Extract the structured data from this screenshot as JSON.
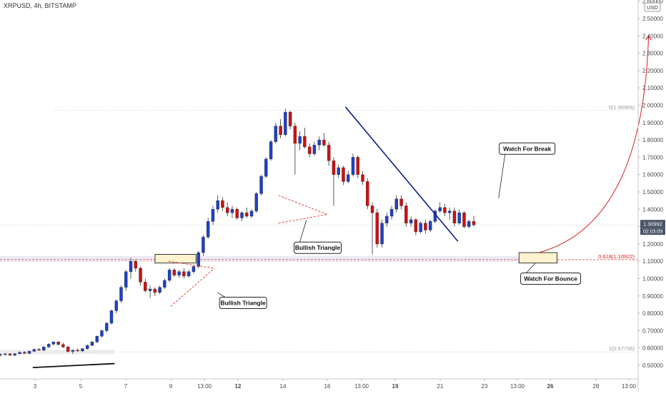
{
  "chart_data": {
    "type": "candlestick",
    "title": "XRPUSD, 4h, BITSTAMP",
    "currency_label": "USD",
    "current_price_label": "1.30992",
    "countdown_label": "02:03:09",
    "ylim": [
      0.44,
      2.64
    ],
    "y_ticks": [
      "0.50000",
      "0.60000",
      "0.70000",
      "0.80000",
      "0.90000",
      "1.00000",
      "1.10000",
      "1.20000",
      "1.30000",
      "1.40000",
      "1.50000",
      "1.60000",
      "1.70000",
      "1.80000",
      "1.90000",
      "2.00000",
      "2.10000",
      "2.20000",
      "2.30000",
      "2.40000",
      "2.50000",
      "2.60000"
    ],
    "x_ticks": [
      "3",
      "5",
      "7",
      "9",
      "13:00",
      "12",
      "14",
      "16",
      "13:00",
      "19",
      "21",
      "23",
      "13:00",
      "26",
      "28",
      "13:00"
    ],
    "fib_levels": [
      {
        "label": "0(1.96965)",
        "value": 1.96965
      },
      {
        "label": "0.618(1.10922)",
        "value": 1.10922
      },
      {
        "label": "1(0.57736)",
        "value": 0.57736
      }
    ],
    "candles": [
      [
        0.56,
        0.568,
        0.552,
        0.563
      ],
      [
        0.563,
        0.572,
        0.556,
        0.566
      ],
      [
        0.566,
        0.57,
        0.555,
        0.558
      ],
      [
        0.558,
        0.57,
        0.552,
        0.567
      ],
      [
        0.567,
        0.58,
        0.562,
        0.575
      ],
      [
        0.575,
        0.582,
        0.566,
        0.569
      ],
      [
        0.569,
        0.585,
        0.565,
        0.581
      ],
      [
        0.581,
        0.596,
        0.575,
        0.592
      ],
      [
        0.592,
        0.6,
        0.584,
        0.587
      ],
      [
        0.587,
        0.612,
        0.582,
        0.606
      ],
      [
        0.606,
        0.627,
        0.6,
        0.622
      ],
      [
        0.622,
        0.64,
        0.615,
        0.635
      ],
      [
        0.635,
        0.64,
        0.615,
        0.62
      ],
      [
        0.62,
        0.63,
        0.6,
        0.606
      ],
      [
        0.606,
        0.612,
        0.575,
        0.58
      ],
      [
        0.58,
        0.592,
        0.565,
        0.587
      ],
      [
        0.587,
        0.598,
        0.578,
        0.583
      ],
      [
        0.583,
        0.6,
        0.576,
        0.596
      ],
      [
        0.596,
        0.62,
        0.59,
        0.615
      ],
      [
        0.615,
        0.64,
        0.61,
        0.635
      ],
      [
        0.635,
        0.672,
        0.628,
        0.668
      ],
      [
        0.668,
        0.705,
        0.66,
        0.7
      ],
      [
        0.7,
        0.75,
        0.69,
        0.743
      ],
      [
        0.743,
        0.822,
        0.735,
        0.815
      ],
      [
        0.815,
        0.88,
        0.8,
        0.872
      ],
      [
        0.872,
        0.96,
        0.86,
        0.95
      ],
      [
        0.95,
        1.05,
        0.93,
        1.04
      ],
      [
        1.04,
        1.12,
        1.0,
        1.1
      ],
      [
        1.1,
        1.11,
        1.04,
        1.06
      ],
      [
        1.06,
        1.07,
        0.96,
        0.98
      ],
      [
        0.98,
        1.0,
        0.92,
        0.93
      ],
      [
        0.93,
        0.96,
        0.89,
        0.94
      ],
      [
        0.94,
        0.95,
        0.9,
        0.92
      ],
      [
        0.92,
        0.96,
        0.91,
        0.95
      ],
      [
        0.95,
        1.0,
        0.94,
        0.99
      ],
      [
        0.99,
        1.06,
        0.98,
        1.05
      ],
      [
        1.05,
        1.06,
        1.01,
        1.02
      ],
      [
        1.02,
        1.05,
        1.005,
        1.04
      ],
      [
        1.04,
        1.06,
        1.0,
        1.015
      ],
      [
        1.015,
        1.05,
        1.005,
        1.04
      ],
      [
        1.04,
        1.08,
        1.03,
        1.07
      ],
      [
        1.07,
        1.16,
        1.06,
        1.15
      ],
      [
        1.15,
        1.25,
        1.13,
        1.24
      ],
      [
        1.24,
        1.35,
        1.23,
        1.33
      ],
      [
        1.33,
        1.42,
        1.31,
        1.4
      ],
      [
        1.4,
        1.48,
        1.38,
        1.45
      ],
      [
        1.45,
        1.47,
        1.39,
        1.41
      ],
      [
        1.41,
        1.44,
        1.36,
        1.38
      ],
      [
        1.38,
        1.42,
        1.35,
        1.4
      ],
      [
        1.4,
        1.41,
        1.34,
        1.35
      ],
      [
        1.35,
        1.39,
        1.33,
        1.38
      ],
      [
        1.38,
        1.41,
        1.35,
        1.36
      ],
      [
        1.36,
        1.4,
        1.35,
        1.39
      ],
      [
        1.39,
        1.5,
        1.38,
        1.49
      ],
      [
        1.49,
        1.6,
        1.48,
        1.59
      ],
      [
        1.59,
        1.7,
        1.58,
        1.69
      ],
      [
        1.69,
        1.8,
        1.68,
        1.79
      ],
      [
        1.79,
        1.9,
        1.78,
        1.88
      ],
      [
        1.88,
        1.92,
        1.81,
        1.83
      ],
      [
        1.83,
        1.98,
        1.82,
        1.96
      ],
      [
        1.96,
        1.97,
        1.86,
        1.88
      ],
      [
        1.88,
        1.9,
        1.6,
        1.78
      ],
      [
        1.78,
        1.85,
        1.74,
        1.82
      ],
      [
        1.82,
        1.87,
        1.75,
        1.76
      ],
      [
        1.76,
        1.78,
        1.7,
        1.72
      ],
      [
        1.72,
        1.79,
        1.71,
        1.77
      ],
      [
        1.77,
        1.82,
        1.74,
        1.8
      ],
      [
        1.8,
        1.84,
        1.76,
        1.77
      ],
      [
        1.77,
        1.79,
        1.65,
        1.68
      ],
      [
        1.68,
        1.7,
        1.42,
        1.6
      ],
      [
        1.6,
        1.66,
        1.58,
        1.64
      ],
      [
        1.64,
        1.65,
        1.54,
        1.56
      ],
      [
        1.56,
        1.62,
        1.55,
        1.6
      ],
      [
        1.6,
        1.72,
        1.59,
        1.7
      ],
      [
        1.7,
        1.71,
        1.58,
        1.6
      ],
      [
        1.6,
        1.62,
        1.54,
        1.56
      ],
      [
        1.56,
        1.58,
        1.4,
        1.42
      ],
      [
        1.42,
        1.44,
        1.14,
        1.38
      ],
      [
        1.38,
        1.4,
        1.18,
        1.2
      ],
      [
        1.2,
        1.34,
        1.18,
        1.32
      ],
      [
        1.32,
        1.38,
        1.3,
        1.36
      ],
      [
        1.36,
        1.42,
        1.34,
        1.4
      ],
      [
        1.4,
        1.48,
        1.38,
        1.46
      ],
      [
        1.46,
        1.48,
        1.4,
        1.42
      ],
      [
        1.42,
        1.44,
        1.3,
        1.32
      ],
      [
        1.32,
        1.36,
        1.3,
        1.34
      ],
      [
        1.34,
        1.35,
        1.25,
        1.27
      ],
      [
        1.27,
        1.33,
        1.26,
        1.32
      ],
      [
        1.32,
        1.34,
        1.26,
        1.28
      ],
      [
        1.28,
        1.34,
        1.27,
        1.33
      ],
      [
        1.33,
        1.4,
        1.32,
        1.39
      ],
      [
        1.39,
        1.44,
        1.38,
        1.41
      ],
      [
        1.41,
        1.43,
        1.36,
        1.38
      ],
      [
        1.38,
        1.41,
        1.34,
        1.39
      ],
      [
        1.39,
        1.41,
        1.3,
        1.32
      ],
      [
        1.32,
        1.4,
        1.31,
        1.38
      ],
      [
        1.38,
        1.39,
        1.29,
        1.3
      ],
      [
        1.3,
        1.34,
        1.29,
        1.33
      ],
      [
        1.33,
        1.36,
        1.3,
        1.31
      ]
    ],
    "trendlines": [
      {
        "name": "descending-resistance",
        "points": [
          [
            1.99,
            7.53
          ],
          [
            1.215,
            10.4
          ]
        ]
      },
      {
        "name": "early-support",
        "points": [
          [
            0.487,
            -0.05
          ],
          [
            0.51,
            1.75
          ]
        ]
      }
    ],
    "triangles": [
      {
        "upper": [
          [
            1.1,
            2.95
          ],
          [
            1.06,
            4.3
          ]
        ],
        "lower": [
          [
            0.84,
            3.0
          ],
          [
            1.06,
            4.3
          ]
        ]
      },
      {
        "upper": [
          [
            1.48,
            5.9
          ],
          [
            1.37,
            7.0
          ]
        ],
        "lower": [
          [
            1.32,
            5.9
          ],
          [
            1.37,
            7.0
          ]
        ]
      }
    ],
    "zones": [
      {
        "name": "prior-high-zone",
        "x": [
          2.65,
          3.75
        ],
        "y": [
          1.09,
          1.14
        ]
      },
      {
        "name": "bounce-zone",
        "x": [
          12.05,
          13.15
        ],
        "y": [
          1.09,
          1.15
        ]
      }
    ],
    "projection": {
      "from": [
        1.15,
        12.65
      ],
      "to": [
        2.4,
        15.6
      ]
    },
    "annotations": [
      {
        "label": "Bullish Triangle",
        "box_at": [
          1.178,
          6.25
        ],
        "pointer_to": [
          1.338,
          6.53
        ]
      },
      {
        "label": "Bullish Triangle",
        "box_at": [
          0.86,
          4.45
        ],
        "pointer_to": [
          0.92,
          4.38
        ]
      },
      {
        "label": "Watch For Break",
        "box_at": [
          1.75,
          11.45
        ],
        "pointer_to": [
          1.465,
          11.43
        ]
      },
      {
        "label": "Watch For Bounce",
        "box_at": [
          1.0,
          12.1
        ],
        "pointer_to": [
          1.09,
          12.55
        ]
      }
    ],
    "colors": {
      "up": "#1e40c8",
      "down": "#d10f0f",
      "trendline": "#0b1f8c",
      "projection": "#d32020",
      "zone_fill": "#fff3cf",
      "zone_stroke": "#222222",
      "fib_line": "#d7d7d7",
      "fib_key_line": "#e15151",
      "triangle": "#e03232",
      "price_tag": "#4a5568"
    }
  }
}
